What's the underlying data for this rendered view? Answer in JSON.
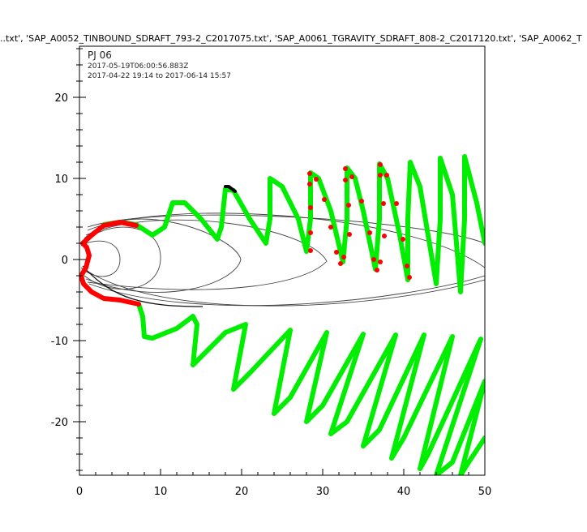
{
  "chart_data": {
    "type": "line",
    "title": "..txt', 'SAP_A0052_TINBOUND_SDRAFT_793-2_C2017075.txt', 'SAP_A0061_TGRAVITY_SDRAFT_808-2_C2017120.txt', 'SAP_A0062_T",
    "annotations": [
      "PJ 06",
      "2017-05-19T06:00:56.883Z",
      "2017-04-22 19:14 to 2017-06-14 15:57"
    ],
    "xlabel": "",
    "ylabel": "",
    "xlim": [
      0,
      50
    ],
    "ylim": [
      -26.6,
      26.3
    ],
    "xticks": [
      0,
      10,
      20,
      30,
      40,
      50
    ],
    "yticks": [
      -20,
      -10,
      0,
      10,
      20
    ],
    "grid": false,
    "colors": {
      "trajectory": "#00ee00",
      "highlight": "#ff0000",
      "contour": "#444444",
      "segment": "#000000"
    },
    "series": [
      {
        "color": "#00ee00",
        "x": [
          3,
          5,
          7,
          9,
          10.5,
          11.5,
          13,
          15,
          17,
          17.5,
          18,
          19,
          21,
          23,
          23.5,
          23.5,
          25,
          27,
          28,
          28.5,
          28.5,
          29.5,
          31,
          32.5,
          33,
          33,
          34,
          35,
          36.5,
          37,
          37,
          38,
          39.5,
          40.5,
          40.5,
          40.8,
          42,
          43.5,
          44,
          44.5,
          44.5,
          46,
          47,
          47.5,
          47.5,
          49,
          50
        ],
        "y": [
          4.3,
          4.6,
          4.3,
          3,
          4,
          7,
          7,
          5,
          2.5,
          4,
          8.7,
          8.5,
          5,
          2,
          5,
          10,
          9,
          5,
          1,
          5,
          10.7,
          10,
          6,
          -0.3,
          5,
          11.3,
          10,
          6,
          -1.2,
          5,
          11.8,
          10,
          3,
          -2.5,
          5,
          12,
          9,
          0,
          -3,
          5,
          12.5,
          8,
          -4,
          5,
          12.7,
          7,
          2
        ]
      },
      {
        "color": "#00ee00",
        "x": [
          7.3,
          7.8,
          8,
          9,
          12,
          14,
          14.5,
          14,
          15,
          18,
          20.5,
          19,
          21,
          26,
          24,
          26,
          30.5,
          28,
          30,
          35,
          31,
          33,
          39,
          35,
          37,
          42.5,
          38.5,
          40,
          46,
          42,
          43,
          49.5,
          44,
          46,
          50,
          47,
          48,
          50
        ],
        "y": [
          -5.5,
          -7,
          -9.5,
          -9.7,
          -8.5,
          -7,
          -8,
          -13,
          -12,
          -9,
          -8,
          -16,
          -14,
          -8.7,
          -19,
          -17,
          -9,
          -20,
          -18,
          -9.2,
          -21.5,
          -20,
          -9.3,
          -23,
          -21,
          -9.3,
          -24.5,
          -22,
          -9.5,
          -25.8,
          -24,
          -9.8,
          -26.6,
          -25,
          -15,
          -26.6,
          -25,
          -22
        ]
      },
      {
        "color": "#ff0000",
        "x": [
          7.3,
          5,
          3,
          1.5,
          0.5,
          0.2,
          0.8,
          1.2,
          0.9,
          0.4,
          1.5,
          3,
          5,
          7
        ],
        "y": [
          -5.5,
          -5,
          -4.8,
          -4,
          -3,
          -2,
          -1,
          0.5,
          1.5,
          2,
          3,
          4.2,
          4.6,
          4.2
        ]
      },
      {
        "color": "#000000",
        "x": [
          18,
          18.4,
          18.8,
          19.2
        ],
        "y": [
          9,
          9,
          8.7,
          8.4
        ]
      }
    ],
    "highlight_points": {
      "color": "#ff0000",
      "x": [
        28.4,
        28.4,
        29.2,
        30.2,
        28.5,
        31.0,
        28.5,
        28.5,
        31.7,
        32.6,
        32.2,
        32.8,
        32.8,
        33.6,
        33.2,
        34.8,
        33.3,
        35.8,
        36.3,
        37.1,
        36.7,
        37.1,
        37.1,
        37.9,
        37.5,
        39.1,
        37.6,
        39.9,
        40.4,
        40.7
      ],
      "y": [
        10.6,
        9.3,
        9.9,
        7.4,
        6.4,
        4.0,
        3.3,
        1.1,
        0.9,
        0.3,
        -0.5,
        11.2,
        9.8,
        10.2,
        6.7,
        7.2,
        3.1,
        3.3,
        0.0,
        -0.3,
        -1.3,
        11.7,
        10.4,
        10.4,
        6.9,
        6.9,
        2.9,
        2.5,
        -0.8,
        -2.2
      ]
    }
  }
}
